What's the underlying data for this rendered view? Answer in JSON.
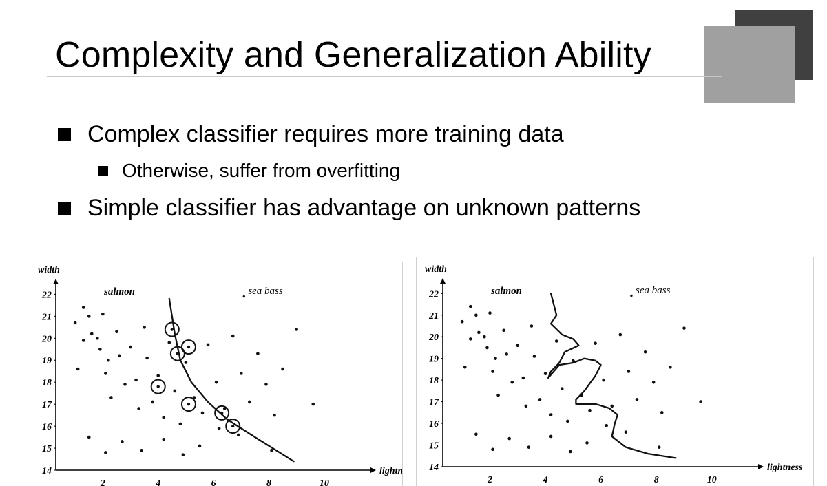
{
  "slide": {
    "title": "Complexity and Generalization Ability",
    "bullets": [
      "Complex classifier requires more training data",
      "Otherwise, suffer from overfitting",
      "Simple classifier has advantage on unknown patterns"
    ]
  },
  "chart_data": [
    {
      "type": "scatter",
      "xlabel": "lightness",
      "ylabel": "width",
      "xticks": [
        "2",
        "4",
        "6",
        "8",
        "10"
      ],
      "yticks": [
        "14",
        "15",
        "16",
        "17",
        "18",
        "19",
        "20",
        "21",
        "22"
      ],
      "xlim": [
        0.3,
        10.8
      ],
      "ylim": [
        14,
        22.2
      ],
      "legend": [
        "salmon",
        "sea bass"
      ],
      "points": [
        [
          1.0,
          20.7
        ],
        [
          1.1,
          18.6
        ],
        [
          1.3,
          21.4
        ],
        [
          1.3,
          19.9
        ],
        [
          1.5,
          21.0
        ],
        [
          1.6,
          20.2
        ],
        [
          1.8,
          20.0
        ],
        [
          1.9,
          19.5
        ],
        [
          2.0,
          21.1
        ],
        [
          2.1,
          18.4
        ],
        [
          2.2,
          19.0
        ],
        [
          2.3,
          17.3
        ],
        [
          2.5,
          20.3
        ],
        [
          2.6,
          19.2
        ],
        [
          2.8,
          17.9
        ],
        [
          3.0,
          19.6
        ],
        [
          3.2,
          18.1
        ],
        [
          3.3,
          16.8
        ],
        [
          3.5,
          20.5
        ],
        [
          3.6,
          19.1
        ],
        [
          3.8,
          17.1
        ],
        [
          4.0,
          18.3
        ],
        [
          4.2,
          16.4
        ],
        [
          4.4,
          19.8
        ],
        [
          4.6,
          17.6
        ],
        [
          4.8,
          16.1
        ],
        [
          5.0,
          18.9
        ],
        [
          5.3,
          17.3
        ],
        [
          5.6,
          16.6
        ],
        [
          5.8,
          19.7
        ],
        [
          6.1,
          18.0
        ],
        [
          6.4,
          16.8
        ],
        [
          6.7,
          20.1
        ],
        [
          7.0,
          18.4
        ],
        [
          7.3,
          17.1
        ],
        [
          7.6,
          19.3
        ],
        [
          7.9,
          17.9
        ],
        [
          8.2,
          16.5
        ],
        [
          8.5,
          18.6
        ],
        [
          9.0,
          20.4
        ],
        [
          9.6,
          17.0
        ],
        [
          1.5,
          15.5
        ],
        [
          2.1,
          14.8
        ],
        [
          2.7,
          15.3
        ],
        [
          3.4,
          14.9
        ],
        [
          4.2,
          15.4
        ],
        [
          4.9,
          14.7
        ],
        [
          5.5,
          15.1
        ],
        [
          6.2,
          15.9
        ],
        [
          6.9,
          15.6
        ],
        [
          8.1,
          14.9
        ]
      ],
      "circled_points": [
        [
          4.5,
          20.4
        ],
        [
          4.7,
          19.3
        ],
        [
          5.1,
          19.6
        ],
        [
          4.0,
          17.8
        ],
        [
          5.1,
          17.0
        ],
        [
          6.3,
          16.6
        ],
        [
          6.7,
          16.0
        ]
      ],
      "boundary": [
        [
          4.4,
          21.8
        ],
        [
          4.6,
          20.2
        ],
        [
          4.8,
          19.0
        ],
        [
          5.2,
          18.0
        ],
        [
          5.8,
          17.1
        ],
        [
          6.5,
          16.3
        ],
        [
          7.5,
          15.5
        ],
        [
          8.9,
          14.4
        ]
      ]
    },
    {
      "type": "scatter",
      "xlabel": "lightness",
      "ylabel": "width",
      "xticks": [
        "2",
        "4",
        "6",
        "8",
        "10"
      ],
      "yticks": [
        "14",
        "15",
        "16",
        "17",
        "18",
        "19",
        "20",
        "21",
        "22"
      ],
      "xlim": [
        0.3,
        10.8
      ],
      "ylim": [
        14,
        22.2
      ],
      "legend": [
        "salmon",
        "sea bass"
      ],
      "points": [
        [
          1.0,
          20.7
        ],
        [
          1.1,
          18.6
        ],
        [
          1.3,
          21.4
        ],
        [
          1.3,
          19.9
        ],
        [
          1.5,
          21.0
        ],
        [
          1.6,
          20.2
        ],
        [
          1.8,
          20.0
        ],
        [
          1.9,
          19.5
        ],
        [
          2.0,
          21.1
        ],
        [
          2.1,
          18.4
        ],
        [
          2.2,
          19.0
        ],
        [
          2.3,
          17.3
        ],
        [
          2.5,
          20.3
        ],
        [
          2.6,
          19.2
        ],
        [
          2.8,
          17.9
        ],
        [
          3.0,
          19.6
        ],
        [
          3.2,
          18.1
        ],
        [
          3.3,
          16.8
        ],
        [
          3.5,
          20.5
        ],
        [
          3.6,
          19.1
        ],
        [
          3.8,
          17.1
        ],
        [
          4.0,
          18.3
        ],
        [
          4.2,
          16.4
        ],
        [
          4.4,
          19.8
        ],
        [
          4.6,
          17.6
        ],
        [
          4.8,
          16.1
        ],
        [
          5.0,
          18.9
        ],
        [
          5.3,
          17.3
        ],
        [
          5.6,
          16.6
        ],
        [
          5.8,
          19.7
        ],
        [
          6.1,
          18.0
        ],
        [
          6.4,
          16.8
        ],
        [
          6.7,
          20.1
        ],
        [
          7.0,
          18.4
        ],
        [
          7.3,
          17.1
        ],
        [
          7.6,
          19.3
        ],
        [
          7.9,
          17.9
        ],
        [
          8.2,
          16.5
        ],
        [
          8.5,
          18.6
        ],
        [
          9.0,
          20.4
        ],
        [
          9.6,
          17.0
        ],
        [
          1.5,
          15.5
        ],
        [
          2.1,
          14.8
        ],
        [
          2.7,
          15.3
        ],
        [
          3.4,
          14.9
        ],
        [
          4.2,
          15.4
        ],
        [
          4.9,
          14.7
        ],
        [
          5.5,
          15.1
        ],
        [
          6.2,
          15.9
        ],
        [
          6.9,
          15.6
        ],
        [
          8.1,
          14.9
        ]
      ],
      "boundary": [
        [
          4.2,
          22.0
        ],
        [
          4.3,
          21.5
        ],
        [
          4.4,
          21.0
        ],
        [
          4.2,
          20.6
        ],
        [
          4.6,
          20.1
        ],
        [
          5.0,
          19.9
        ],
        [
          5.2,
          19.6
        ],
        [
          4.7,
          19.3
        ],
        [
          4.5,
          18.8
        ],
        [
          4.2,
          18.4
        ],
        [
          4.1,
          18.1
        ],
        [
          4.5,
          18.7
        ],
        [
          5.0,
          18.8
        ],
        [
          5.4,
          19.0
        ],
        [
          5.8,
          18.9
        ],
        [
          6.0,
          18.7
        ],
        [
          5.8,
          18.2
        ],
        [
          5.4,
          17.5
        ],
        [
          5.1,
          17.1
        ],
        [
          5.1,
          16.9
        ],
        [
          5.8,
          16.9
        ],
        [
          6.3,
          16.7
        ],
        [
          6.6,
          16.4
        ],
        [
          6.5,
          16.0
        ],
        [
          6.4,
          15.4
        ],
        [
          6.9,
          14.9
        ],
        [
          7.7,
          14.6
        ],
        [
          8.7,
          14.4
        ]
      ]
    }
  ],
  "chart_labels": {
    "left": {
      "salmon": "salmon",
      "sea_bass": "sea bass",
      "x_axis": "lightness",
      "y_axis": "width"
    },
    "right": {
      "salmon": "salmon",
      "sea_bass": "sea bass",
      "x_axis": "lightness",
      "y_axis": "width"
    }
  }
}
